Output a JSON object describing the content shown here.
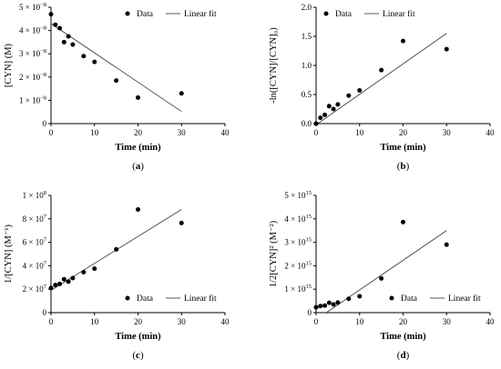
{
  "chart_data": [
    {
      "type": "scatter",
      "panel_label": "(a)",
      "xlabel": "Time (min)",
      "ylabel": "[CYN] (M)",
      "xlim": [
        0,
        40
      ],
      "ylim": [
        0,
        5e-08
      ],
      "xticks": [
        "0",
        "10",
        "20",
        "30",
        "40"
      ],
      "yticks": [
        {
          "value": 0,
          "mantissa": "0",
          "exp": ""
        },
        {
          "value": 1e-08,
          "mantissa": "1 × 10",
          "exp": "−8"
        },
        {
          "value": 2e-08,
          "mantissa": "2 × 10",
          "exp": "−8"
        },
        {
          "value": 3e-08,
          "mantissa": "3 × 10",
          "exp": "−8"
        },
        {
          "value": 4e-08,
          "mantissa": "4 × 10",
          "exp": "−8"
        },
        {
          "value": 5e-08,
          "mantissa": "5 × 10",
          "exp": "−8"
        }
      ],
      "legend": {
        "data": "Data",
        "fit": "Linear fit",
        "position": "top-right"
      },
      "series": [
        {
          "name": "Data",
          "x": [
            0,
            1,
            2,
            3,
            4,
            5,
            7.5,
            10,
            15,
            20,
            30
          ],
          "y": [
            4.7e-08,
            4.25e-08,
            4.1e-08,
            3.5e-08,
            3.75e-08,
            3.4e-08,
            2.9e-08,
            2.65e-08,
            1.85e-08,
            1.12e-08,
            1.3e-08
          ]
        },
        {
          "name": "Linear fit",
          "x": [
            0,
            30
          ],
          "y": [
            4.3e-08,
            5.2e-09
          ]
        }
      ]
    },
    {
      "type": "scatter",
      "panel_label": "(b)",
      "xlabel": "Time (min)",
      "ylabel": "-ln([CYN]/[CYN]₀)",
      "xlim": [
        0,
        40
      ],
      "ylim": [
        0,
        2
      ],
      "xticks": [
        "0",
        "10",
        "20",
        "30",
        "40"
      ],
      "yticks": [
        {
          "value": 0,
          "mantissa": "0.0",
          "exp": ""
        },
        {
          "value": 0.5,
          "mantissa": "0.5",
          "exp": ""
        },
        {
          "value": 1,
          "mantissa": "1.0",
          "exp": ""
        },
        {
          "value": 1.5,
          "mantissa": "1.5",
          "exp": ""
        },
        {
          "value": 2,
          "mantissa": "2.0",
          "exp": ""
        }
      ],
      "legend": {
        "data": "Data",
        "fit": "Linear fit",
        "position": "top-left"
      },
      "series": [
        {
          "name": "Data",
          "x": [
            0,
            1,
            2,
            3,
            4,
            5,
            7.5,
            10,
            15,
            20,
            30
          ],
          "y": [
            0,
            0.1,
            0.15,
            0.3,
            0.25,
            0.33,
            0.48,
            0.57,
            0.92,
            1.42,
            1.28
          ]
        },
        {
          "name": "Linear fit",
          "x": [
            0,
            30
          ],
          "y": [
            -0.02,
            1.55
          ]
        }
      ]
    },
    {
      "type": "scatter",
      "panel_label": "(c)",
      "xlabel": "Time (min)",
      "ylabel": "1/[CYN] (M⁻¹)",
      "xlim": [
        0,
        40
      ],
      "ylim": [
        0,
        100000000.0
      ],
      "xticks": [
        "0",
        "10",
        "20",
        "30",
        "40"
      ],
      "yticks": [
        {
          "value": 0,
          "mantissa": "0",
          "exp": ""
        },
        {
          "value": 20000000.0,
          "mantissa": "2 × 10",
          "exp": "7"
        },
        {
          "value": 40000000.0,
          "mantissa": "4 × 10",
          "exp": "7"
        },
        {
          "value": 60000000.0,
          "mantissa": "6 × 10",
          "exp": "7"
        },
        {
          "value": 80000000.0,
          "mantissa": "8 × 10",
          "exp": "7"
        },
        {
          "value": 100000000.0,
          "mantissa": "1 × 10",
          "exp": "8"
        }
      ],
      "legend": {
        "data": "Data",
        "fit": "Linear fit",
        "position": "bottom-right"
      },
      "series": [
        {
          "name": "Data",
          "x": [
            0,
            1,
            2,
            3,
            4,
            5,
            7.5,
            10,
            15,
            20,
            30
          ],
          "y": [
            21000000.0,
            23500000.0,
            24500000.0,
            28500000.0,
            26500000.0,
            29500000.0,
            34500000.0,
            37500000.0,
            54000000.0,
            88000000.0,
            76500000.0
          ]
        },
        {
          "name": "Linear fit",
          "x": [
            0,
            30
          ],
          "y": [
            19000000.0,
            88000000.0
          ]
        }
      ]
    },
    {
      "type": "scatter",
      "panel_label": "(d)",
      "xlabel": "Time (min)",
      "ylabel": "1/2[CYN]² (M⁻²)",
      "xlim": [
        0,
        40
      ],
      "ylim": [
        0,
        5000000000000000.0
      ],
      "xticks": [
        "0",
        "10",
        "20",
        "30",
        "40"
      ],
      "yticks": [
        {
          "value": 0,
          "mantissa": "0",
          "exp": ""
        },
        {
          "value": 1000000000000000.0,
          "mantissa": "1 × 10",
          "exp": "15"
        },
        {
          "value": 2000000000000000.0,
          "mantissa": "2 × 10",
          "exp": "15"
        },
        {
          "value": 3000000000000000.0,
          "mantissa": "3 × 10",
          "exp": "15"
        },
        {
          "value": 4000000000000000.0,
          "mantissa": "4 × 10",
          "exp": "15"
        },
        {
          "value": 5000000000000000.0,
          "mantissa": "5 × 10",
          "exp": "15"
        }
      ],
      "legend": {
        "data": "Data",
        "fit": "Linear fit",
        "position": "bottom-right"
      },
      "series": [
        {
          "name": "Data",
          "x": [
            0,
            1,
            2,
            3,
            4,
            5,
            7.5,
            10,
            15,
            20,
            30
          ],
          "y": [
            230000000000000.0,
            280000000000000.0,
            300000000000000.0,
            420000000000000.0,
            350000000000000.0,
            430000000000000.0,
            590000000000000.0,
            700000000000000.0,
            1460000000000000.0,
            3860000000000000.0,
            2900000000000000.0
          ]
        },
        {
          "name": "Linear fit",
          "x": [
            0,
            30
          ],
          "y": [
            -300000000000000.0,
            3500000000000000.0
          ]
        }
      ]
    }
  ]
}
